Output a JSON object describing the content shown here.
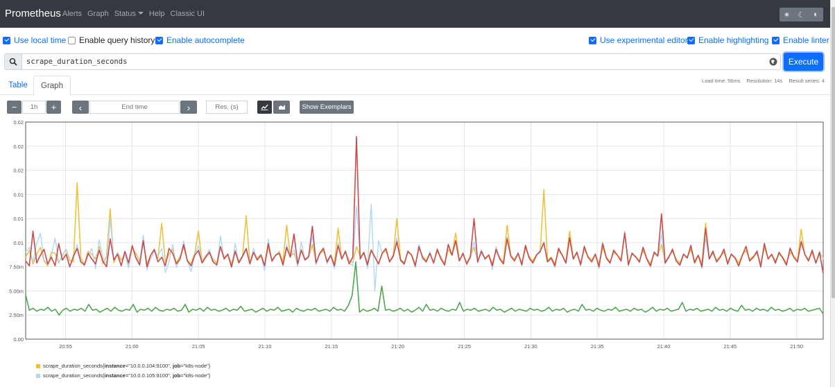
{
  "navbar": {
    "brand": "Prometheus",
    "items": [
      "Alerts",
      "Graph",
      "Status",
      "Help",
      "Classic UI"
    ]
  },
  "options": {
    "use_local_time": {
      "label": "Use local time",
      "checked": true
    },
    "enable_query_history": {
      "label": "Enable query history",
      "checked": false
    },
    "enable_autocomplete": {
      "label": "Enable autocomplete",
      "checked": true
    },
    "use_experimental_editor": {
      "label": "Use experimental editor",
      "checked": true
    },
    "enable_highlighting": {
      "label": "Enable highlighting",
      "checked": true
    },
    "enable_linter": {
      "label": "Enable linter",
      "checked": true
    }
  },
  "query": {
    "expression": "scrape_duration_seconds",
    "execute_label": "Execute"
  },
  "stats": {
    "load_time": "Load time: 56ms",
    "resolution": "Resolution: 14s",
    "result_series": "Result series: 4"
  },
  "tabs": {
    "table": "Table",
    "graph": "Graph"
  },
  "controls": {
    "range_minus": "−",
    "range": "1h",
    "range_plus": "+",
    "prev": "‹",
    "end_time_placeholder": "End time",
    "next": "›",
    "resolution_placeholder": "Res. (s)",
    "show_exemplars": "Show Exemplars"
  },
  "colors": {
    "series_yellow": "#edc240",
    "series_lightblue": "#afd8f8",
    "series_red": "#cb4b4b",
    "series_green": "#4da74d",
    "navbar": "#343a40",
    "primary": "#0d6efd"
  },
  "legend": [
    {
      "metric": "scrape_duration_seconds",
      "instance": "10.0.0.104:9100",
      "job": "k8s-node",
      "color": "#edc240"
    },
    {
      "metric": "scrape_duration_seconds",
      "instance": "10.0.0.105:9100",
      "job": "k8s-node",
      "color": "#afd8f8"
    }
  ],
  "legend_labels": {
    "instance_key": "instance",
    "job_key": "job"
  },
  "chart_data": {
    "type": "line",
    "x_ticks": [
      "20:55",
      "21:00",
      "21:05",
      "21:10",
      "21:15",
      "21:20",
      "21:25",
      "21:30",
      "21:35",
      "21:40",
      "21:45",
      "21:50"
    ],
    "y_tick_labels": [
      "0.00",
      "2.50m",
      "5.00m",
      "7.50m",
      "0.01",
      "0.01",
      "0.01",
      "0.02",
      "0.02",
      "0.02"
    ],
    "y_tick_values": [
      0,
      0.0025,
      0.005,
      0.0075,
      0.01,
      0.0125,
      0.015,
      0.0175,
      0.02,
      0.0225
    ],
    "ylim": [
      0,
      0.0225
    ],
    "xlim_minutes_from_20_52": [
      0,
      60
    ],
    "grid": true,
    "series": [
      {
        "legend_index": 0,
        "color": "#edc240",
        "values": [
          0.0085,
          0.0092,
          0.0078,
          0.0088,
          0.0095,
          0.0081,
          0.0076,
          0.009,
          0.0089,
          0.0079,
          0.0087,
          0.0093,
          0.0082,
          0.008,
          0.0162,
          0.0085,
          0.0077,
          0.0091,
          0.0088,
          0.0083,
          0.0096,
          0.0078,
          0.0086,
          0.0135,
          0.0079,
          0.009,
          0.0082,
          0.0088,
          0.0077,
          0.0094,
          0.0089,
          0.0081,
          0.0102,
          0.0078,
          0.0087,
          0.0092,
          0.0084,
          0.012,
          0.008,
          0.0088,
          0.0093,
          0.0079,
          0.0086,
          0.0095,
          0.0082,
          0.0078,
          0.0089,
          0.0112,
          0.008,
          0.0087,
          0.0091,
          0.0083,
          0.0079,
          0.0096,
          0.0085,
          0.0088,
          0.0078,
          0.0092,
          0.0081,
          0.0086,
          0.0128,
          0.0079,
          0.009,
          0.0084,
          0.0088,
          0.0077,
          0.0095,
          0.0082,
          0.0087,
          0.0091,
          0.008,
          0.0118,
          0.0086,
          0.0089,
          0.0078,
          0.0093,
          0.0083,
          0.0085,
          0.0098,
          0.0079,
          0.0088,
          0.0092,
          0.0081,
          0.0087,
          0.0078,
          0.0115,
          0.0084,
          0.009,
          0.0082,
          0.0079,
          0.0096,
          0.0086,
          0.0088,
          0.008,
          0.0093,
          0.0085,
          0.0078,
          0.0089,
          0.0092,
          0.0081,
          0.0087,
          0.0125,
          0.0083,
          0.0079,
          0.009,
          0.0088,
          0.0077,
          0.0094,
          0.0086,
          0.0082,
          0.0089,
          0.008,
          0.0091,
          0.0085,
          0.0078,
          0.0093,
          0.0087,
          0.011,
          0.0082,
          0.0088,
          0.0079,
          0.0086,
          0.0095,
          0.0081,
          0.009,
          0.0084,
          0.0088,
          0.0078,
          0.0092,
          0.0085,
          0.008,
          0.0118,
          0.0087,
          0.0083,
          0.0089,
          0.0079,
          0.0094,
          0.0086,
          0.0081,
          0.0088,
          0.009,
          0.0155,
          0.0082,
          0.0085,
          0.0078,
          0.0092,
          0.0087,
          0.008,
          0.0112,
          0.0084,
          0.0089,
          0.0079,
          0.0093,
          0.0086,
          0.0082,
          0.0088,
          0.0078,
          0.0095,
          0.0085,
          0.008,
          0.009,
          0.0087,
          0.0083,
          0.011,
          0.0079,
          0.0088,
          0.0086,
          0.0081,
          0.0092,
          0.0084,
          0.0078,
          0.0089,
          0.0087,
          0.0098,
          0.008,
          0.0086,
          0.0091,
          0.0083,
          0.0079,
          0.0088,
          0.0085,
          0.0093,
          0.0081,
          0.0087,
          0.0078,
          0.012,
          0.0084,
          0.0089,
          0.0082,
          0.0086,
          0.009,
          0.008,
          0.0088,
          0.0085,
          0.0079,
          0.0087,
          0.0092,
          0.0083,
          0.0086,
          0.0089,
          0.0078,
          0.0095,
          0.0084,
          0.0087,
          0.0081,
          0.0088,
          0.0085,
          0.0079,
          0.009,
          0.0086,
          0.0082,
          0.0114,
          0.0087,
          0.0083,
          0.0089,
          0.008,
          0.0088,
          0.0085
        ]
      },
      {
        "legend_index": 1,
        "color": "#afd8f8",
        "values": [
          0.009,
          0.0095,
          0.008,
          0.0099,
          0.011,
          0.0082,
          0.0078,
          0.0086,
          0.0105,
          0.0079,
          0.0088,
          0.0092,
          0.0075,
          0.0084,
          0.0098,
          0.0081,
          0.0076,
          0.0087,
          0.0094,
          0.0073,
          0.0103,
          0.0084,
          0.0079,
          0.0124,
          0.0082,
          0.009,
          0.0077,
          0.0088,
          0.0074,
          0.0096,
          0.0085,
          0.0079,
          0.0108,
          0.0072,
          0.0083,
          0.0091,
          0.0086,
          0.0094,
          0.0069,
          0.008,
          0.0098,
          0.0074,
          0.0084,
          0.0102,
          0.0081,
          0.007,
          0.0088,
          0.0097,
          0.0079,
          0.0086,
          0.0093,
          0.0081,
          0.0076,
          0.0107,
          0.0083,
          0.0089,
          0.0074,
          0.0099,
          0.0079,
          0.0085,
          0.0092,
          0.0078,
          0.0094,
          0.0082,
          0.0088,
          0.0071,
          0.0104,
          0.008,
          0.0087,
          0.009,
          0.0076,
          0.0098,
          0.0086,
          0.0093,
          0.0075,
          0.0101,
          0.0082,
          0.0084,
          0.0107,
          0.0077,
          0.0089,
          0.0095,
          0.0078,
          0.0086,
          0.0073,
          0.01,
          0.0083,
          0.0092,
          0.0079,
          0.0076,
          0.0138,
          0.0085,
          0.009,
          0.0073,
          0.014,
          0.005,
          0.0102,
          0.0089,
          0.0094,
          0.008,
          0.0086,
          0.0105,
          0.0081,
          0.0077,
          0.0092,
          0.0087,
          0.0074,
          0.0098,
          0.0085,
          0.008,
          0.0091,
          0.0078,
          0.0094,
          0.0084,
          0.0076,
          0.0099,
          0.0088,
          0.0102,
          0.0081,
          0.009,
          0.0077,
          0.0085,
          0.0101,
          0.0079,
          0.0093,
          0.0083,
          0.0088,
          0.0072,
          0.0096,
          0.0084,
          0.0078,
          0.0106,
          0.0087,
          0.0081,
          0.009,
          0.0076,
          0.0098,
          0.0085,
          0.0079,
          0.0088,
          0.0092,
          0.0099,
          0.008,
          0.0084,
          0.0074,
          0.0095,
          0.0087,
          0.0078,
          0.0103,
          0.0083,
          0.0091,
          0.0076,
          0.0097,
          0.0085,
          0.008,
          0.0089,
          0.0073,
          0.0101,
          0.0084,
          0.0078,
          0.0093,
          0.0087,
          0.0081,
          0.0112,
          0.0076,
          0.009,
          0.0085,
          0.0079,
          0.0096,
          0.0083,
          0.0074,
          0.0091,
          0.0087,
          0.0109,
          0.0078,
          0.0085,
          0.0094,
          0.0081,
          0.0076,
          0.0089,
          0.0084,
          0.0098,
          0.0079,
          0.0087,
          0.0073,
          0.0104,
          0.0083,
          0.0092,
          0.008,
          0.0085,
          0.0094,
          0.0077,
          0.0089,
          0.0084,
          0.0075,
          0.0087,
          0.0097,
          0.0081,
          0.0085,
          0.0092,
          0.0074,
          0.01,
          0.0083,
          0.0088,
          0.0078,
          0.009,
          0.0084,
          0.0076,
          0.0095,
          0.0085,
          0.008,
          0.0102,
          0.0088,
          0.0081,
          0.0093,
          0.0078,
          0.0091,
          0.0083
        ]
      },
      {
        "legend_index": 2,
        "color": "#cb4b4b",
        "values": [
          0.0081,
          0.0076,
          0.0112,
          0.0079,
          0.0087,
          0.0093,
          0.0078,
          0.0085,
          0.0076,
          0.0099,
          0.0082,
          0.0088,
          0.0075,
          0.0086,
          0.0094,
          0.008,
          0.0077,
          0.0089,
          0.0083,
          0.0078,
          0.0092,
          0.0081,
          0.0075,
          0.0104,
          0.0082,
          0.0088,
          0.0076,
          0.0091,
          0.0079,
          0.0097,
          0.0084,
          0.0077,
          0.0102,
          0.0075,
          0.0087,
          0.0093,
          0.008,
          0.0085,
          0.0076,
          0.0094,
          0.0089,
          0.0078,
          0.0083,
          0.0098,
          0.0081,
          0.0076,
          0.0087,
          0.0092,
          0.0079,
          0.0085,
          0.009,
          0.008,
          0.0077,
          0.0096,
          0.0083,
          0.0088,
          0.0075,
          0.0091,
          0.0079,
          0.0086,
          0.0094,
          0.0078,
          0.009,
          0.0082,
          0.0087,
          0.0076,
          0.0099,
          0.0081,
          0.0087,
          0.0089,
          0.0077,
          0.0095,
          0.0085,
          0.0109,
          0.0078,
          0.0092,
          0.0082,
          0.0086,
          0.0117,
          0.0079,
          0.0089,
          0.0094,
          0.008,
          0.0087,
          0.0076,
          0.0097,
          0.0083,
          0.0091,
          0.0078,
          0.0085,
          0.021,
          0.0083,
          0.009,
          0.0077,
          0.0092,
          0.0085,
          0.0078,
          0.0089,
          0.0094,
          0.008,
          0.0086,
          0.0101,
          0.0082,
          0.0078,
          0.0091,
          0.0087,
          0.0076,
          0.0096,
          0.0084,
          0.008,
          0.0089,
          0.0079,
          0.0093,
          0.0083,
          0.0077,
          0.0098,
          0.0087,
          0.0102,
          0.0081,
          0.0089,
          0.0078,
          0.0085,
          0.0125,
          0.008,
          0.0091,
          0.0083,
          0.0087,
          0.0076,
          0.0093,
          0.0083,
          0.0078,
          0.0104,
          0.0086,
          0.0081,
          0.0089,
          0.0077,
          0.0097,
          0.0084,
          0.0079,
          0.0087,
          0.0091,
          0.01,
          0.008,
          0.0084,
          0.0076,
          0.0094,
          0.0087,
          0.0079,
          0.0105,
          0.0083,
          0.009,
          0.0077,
          0.0096,
          0.0085,
          0.008,
          0.0088,
          0.0075,
          0.0099,
          0.0084,
          0.0079,
          0.0092,
          0.0087,
          0.0081,
          0.011,
          0.0077,
          0.0089,
          0.0085,
          0.008,
          0.0095,
          0.0083,
          0.0076,
          0.009,
          0.0086,
          0.013,
          0.0079,
          0.0085,
          0.0093,
          0.0081,
          0.0077,
          0.0088,
          0.0084,
          0.0097,
          0.0079,
          0.0087,
          0.0075,
          0.0115,
          0.0083,
          0.0091,
          0.008,
          0.0085,
          0.0093,
          0.0078,
          0.0088,
          0.0084,
          0.0076,
          0.0087,
          0.0096,
          0.0081,
          0.0085,
          0.0091,
          0.0075,
          0.0099,
          0.0083,
          0.0088,
          0.0079,
          0.009,
          0.0084,
          0.0077,
          0.0094,
          0.0085,
          0.008,
          0.0101,
          0.0088,
          0.0081,
          0.0092,
          0.0079,
          0.009,
          0.0068
        ]
      },
      {
        "legend_index": 3,
        "color": "#4da74d",
        "values": [
          0.0046,
          0.003,
          0.0032,
          0.0029,
          0.0031,
          0.003,
          0.0033,
          0.0029,
          0.0031,
          0.0025,
          0.003,
          0.0032,
          0.0029,
          0.0031,
          0.003,
          0.0032,
          0.0029,
          0.0036,
          0.003,
          0.0031,
          0.0028,
          0.003,
          0.0032,
          0.0029,
          0.0033,
          0.003,
          0.0029,
          0.0031,
          0.003,
          0.0036,
          0.0028,
          0.0031,
          0.003,
          0.0032,
          0.0029,
          0.0033,
          0.003,
          0.0029,
          0.0031,
          0.003,
          0.0032,
          0.0029,
          0.003,
          0.0036,
          0.0028,
          0.0031,
          0.003,
          0.0032,
          0.0029,
          0.0033,
          0.003,
          0.0031,
          0.0029,
          0.003,
          0.0032,
          0.0029,
          0.0031,
          0.003,
          0.0034,
          0.0029,
          0.003,
          0.0031,
          0.0028,
          0.003,
          0.0032,
          0.0029,
          0.0031,
          0.003,
          0.0033,
          0.0029,
          0.003,
          0.0031,
          0.0028,
          0.0032,
          0.003,
          0.0029,
          0.0031,
          0.003,
          0.0032,
          0.0029,
          0.003,
          0.0031,
          0.0029,
          0.0033,
          0.003,
          0.0031,
          0.0029,
          0.0035,
          0.0045,
          0.008,
          0.0028,
          0.0031,
          0.0029,
          0.003,
          0.0032,
          0.0029,
          0.0055,
          0.003,
          0.0031,
          0.0029,
          0.003,
          0.0032,
          0.0029,
          0.0031,
          0.0028,
          0.003,
          0.0033,
          0.0029,
          0.0036,
          0.003,
          0.0031,
          0.0029,
          0.0032,
          0.003,
          0.0029,
          0.0031,
          0.003,
          0.0038,
          0.0029,
          0.0031,
          0.003,
          0.0032,
          0.0029,
          0.003,
          0.0031,
          0.0029,
          0.0033,
          0.003,
          0.0031,
          0.0028,
          0.003,
          0.0032,
          0.0029,
          0.0031,
          0.003,
          0.0029,
          0.0032,
          0.003,
          0.0031,
          0.0029,
          0.003,
          0.0033,
          0.0029,
          0.0031,
          0.003,
          0.0032,
          0.0028,
          0.003,
          0.0031,
          0.0029,
          0.0036,
          0.003,
          0.0031,
          0.0029,
          0.0032,
          0.003,
          0.0029,
          0.0031,
          0.003,
          0.0033,
          0.0029,
          0.003,
          0.0031,
          0.0029,
          0.0032,
          0.003,
          0.0031,
          0.0028,
          0.003,
          0.0033,
          0.0029,
          0.0031,
          0.003,
          0.0032,
          0.0029,
          0.003,
          0.0031,
          0.0038,
          0.0029,
          0.0031,
          0.003,
          0.0032,
          0.0029,
          0.003,
          0.0031,
          0.0029,
          0.0033,
          0.003,
          0.0031,
          0.0029,
          0.0032,
          0.003,
          0.0029,
          0.0035,
          0.003,
          0.0031,
          0.0029,
          0.0032,
          0.003,
          0.0031,
          0.0029,
          0.0033,
          0.003,
          0.0031,
          0.0029,
          0.003,
          0.0032,
          0.0029,
          0.0031,
          0.003,
          0.0032,
          0.0029,
          0.003,
          0.0031,
          0.0032,
          0.0026
        ]
      }
    ]
  }
}
